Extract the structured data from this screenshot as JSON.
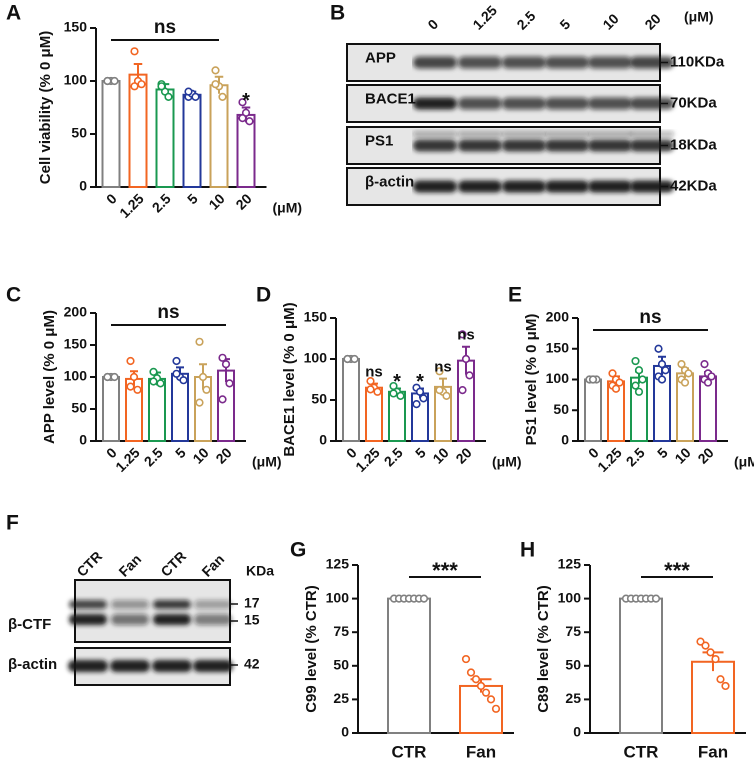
{
  "chart_data": [
    {
      "letter": "A",
      "type": "bar",
      "ylabel": "Cell viability (% 0 μM)",
      "categories": [
        "0",
        "1.25",
        "2.5",
        "5",
        "10",
        "20"
      ],
      "xunit": "(μM)",
      "values": [
        100,
        106,
        92,
        87,
        96,
        68
      ],
      "errors": [
        0,
        10,
        5,
        3,
        8,
        7
      ],
      "points": [
        [
          100,
          100,
          100,
          100
        ],
        [
          128,
          100,
          97,
          95
        ],
        [
          97,
          90,
          85,
          95
        ],
        [
          85,
          88,
          85,
          90
        ],
        [
          110,
          95,
          85,
          97
        ],
        [
          80,
          70,
          62,
          65
        ]
      ],
      "colors": [
        "#808080",
        "#f26522",
        "#1a9850",
        "#23389a",
        "#c9a25a",
        "#7b2a8c"
      ],
      "ylim": [
        0,
        150
      ],
      "yticks": [
        0,
        50,
        100,
        150
      ],
      "bracket": "ns",
      "bar_labels": [
        null,
        null,
        null,
        null,
        null,
        "*"
      ]
    },
    {
      "letter": "C",
      "type": "bar",
      "ylabel": "APP level (% 0 μM)",
      "categories": [
        "0",
        "1.25",
        "2.5",
        "5",
        "10",
        "20"
      ],
      "xunit": "(μM)",
      "values": [
        100,
        97,
        97,
        105,
        100,
        110
      ],
      "errors": [
        0,
        12,
        10,
        10,
        20,
        18
      ],
      "points": [
        [
          100,
          100,
          100,
          100
        ],
        [
          125,
          100,
          80,
          85
        ],
        [
          108,
          98,
          90,
          93
        ],
        [
          125,
          100,
          95,
          105
        ],
        [
          155,
          100,
          80,
          60
        ],
        [
          130,
          120,
          90,
          65
        ]
      ],
      "colors": [
        "#808080",
        "#f26522",
        "#1a9850",
        "#23389a",
        "#c9a25a",
        "#7b2a8c"
      ],
      "ylim": [
        0,
        200
      ],
      "yticks": [
        0,
        50,
        100,
        150,
        200
      ],
      "bracket": "ns"
    },
    {
      "letter": "D",
      "type": "bar",
      "ylabel": "BACE1 level (% 0 μM)",
      "categories": [
        "0",
        "1.25",
        "2.5",
        "5",
        "10",
        "20"
      ],
      "xunit": "(μM)",
      "values": [
        100,
        65,
        60,
        58,
        66,
        98
      ],
      "errors": [
        0,
        5,
        4,
        6,
        10,
        17
      ],
      "points": [
        [
          100,
          100,
          100,
          100
        ],
        [
          73,
          65,
          60,
          63
        ],
        [
          67,
          60,
          55,
          58
        ],
        [
          65,
          60,
          52,
          45
        ],
        [
          85,
          60,
          55,
          62
        ],
        [
          130,
          100,
          80,
          62
        ]
      ],
      "colors": [
        "#808080",
        "#f26522",
        "#1a9850",
        "#23389a",
        "#c9a25a",
        "#7b2a8c"
      ],
      "ylim": [
        0,
        150
      ],
      "yticks": [
        0,
        50,
        100,
        150
      ],
      "bar_labels": [
        null,
        "ns",
        "*",
        "*",
        "ns",
        "ns"
      ]
    },
    {
      "letter": "E",
      "type": "bar",
      "ylabel": "PS1 level (% 0 μM)",
      "categories": [
        "0",
        "1.25",
        "2.5",
        "5",
        "10",
        "20"
      ],
      "xunit": "(μM)",
      "values": [
        100,
        97,
        103,
        122,
        110,
        105
      ],
      "errors": [
        0,
        8,
        10,
        15,
        8,
        7
      ],
      "points": [
        [
          100,
          100,
          100,
          100,
          100
        ],
        [
          110,
          100,
          95,
          90,
          85
        ],
        [
          130,
          115,
          100,
          90,
          80
        ],
        [
          150,
          125,
          115,
          105,
          100
        ],
        [
          125,
          115,
          110,
          100,
          95
        ],
        [
          125,
          110,
          105,
          100,
          95
        ]
      ],
      "colors": [
        "#808080",
        "#f26522",
        "#1a9850",
        "#23389a",
        "#c9a25a",
        "#7b2a8c"
      ],
      "ylim": [
        0,
        200
      ],
      "yticks": [
        0,
        50,
        100,
        150,
        200
      ],
      "bracket": "ns"
    },
    {
      "letter": "G",
      "type": "bar",
      "ylabel": "C99 level (% CTR)",
      "categories": [
        "CTR",
        "Fan"
      ],
      "values": [
        100,
        35
      ],
      "errors": [
        0,
        5
      ],
      "points": [
        [
          100,
          100,
          100,
          100,
          100,
          100,
          100
        ],
        [
          55,
          45,
          40,
          35,
          30,
          25,
          18
        ]
      ],
      "colors": [
        "#808080",
        "#f26522"
      ],
      "ylim": [
        0,
        125
      ],
      "yticks": [
        0,
        25,
        50,
        75,
        100,
        125
      ],
      "bracket": "***"
    },
    {
      "letter": "H",
      "type": "bar",
      "ylabel": "C89 level (% CTR)",
      "categories": [
        "CTR",
        "Fan"
      ],
      "values": [
        100,
        53
      ],
      "errors": [
        0,
        7
      ],
      "points": [
        [
          100,
          100,
          100,
          100,
          100,
          100,
          100
        ],
        [
          68,
          65,
          60,
          55,
          40,
          35
        ]
      ],
      "colors": [
        "#808080",
        "#f26522"
      ],
      "ylim": [
        0,
        125
      ],
      "yticks": [
        0,
        25,
        50,
        75,
        100,
        125
      ],
      "bracket": "***"
    }
  ],
  "blots": [
    {
      "letter": "B",
      "lanes": [
        "0",
        "1.25",
        "2.5",
        "5",
        "10",
        "20"
      ],
      "unit": "(μM)",
      "rows": [
        "APP",
        "BACE1",
        "PS1",
        "β-actin"
      ],
      "sizes": [
        "110KDa",
        "70KDa",
        "18KDa",
        "42KDa"
      ]
    },
    {
      "letter": "F",
      "lanes": [
        "CTR",
        "Fan",
        "CTR",
        "Fan"
      ],
      "unit": "KDa",
      "rows": [
        "β-CTF",
        "β-actin"
      ],
      "sizes": [
        "17",
        "15",
        "42"
      ]
    }
  ]
}
